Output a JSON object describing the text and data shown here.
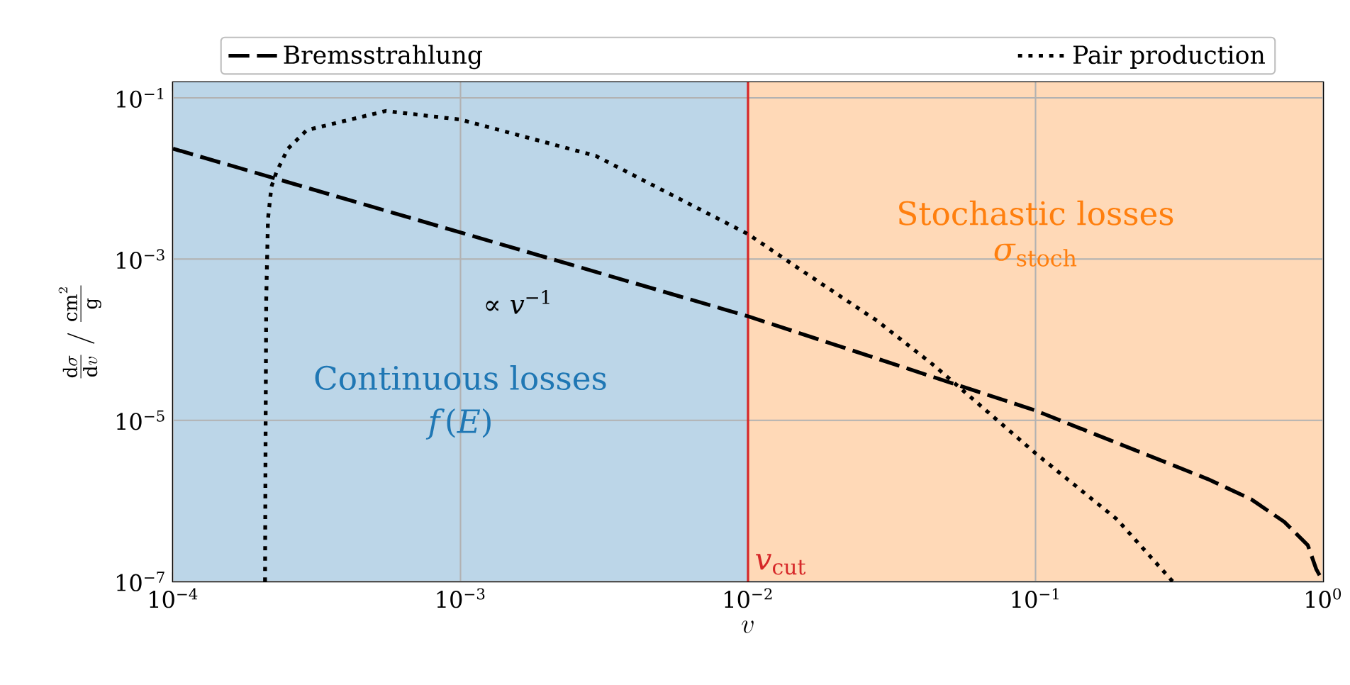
{
  "chart_data": {
    "type": "line",
    "xlabel": "v",
    "ylabel": "\\frac{\\mathrm{d}\\sigma}{\\mathrm{d}v}\\;/\\;\\frac{\\mathrm{cm}^2}{\\mathrm{g}}",
    "log": "xy",
    "grid": true,
    "legend": "top",
    "xlim": [
      0.0001,
      1
    ],
    "ylim": [
      1e-07,
      0.156
    ],
    "xticks": [
      {
        "value": 0.0001,
        "label": "10$^{−4}$"
      },
      {
        "value": 0.001,
        "label": "10$^{−3}$"
      },
      {
        "value": 0.01,
        "label": "10$^{−2}$"
      },
      {
        "value": 0.1,
        "label": "10$^{−1}$"
      },
      {
        "value": 1,
        "label": "10$^{0}$"
      }
    ],
    "yticks": [
      {
        "value": 1e-07,
        "label": "10$^{−7}$"
      },
      {
        "value": 1e-05,
        "label": "10$^{−5}$"
      },
      {
        "value": 0.001,
        "label": "10$^{−3}$"
      },
      {
        "value": 0.1,
        "label": "10$^{−1}$"
      }
    ],
    "series": [
      {
        "name": "Bremsstrahlung",
        "color": "#000000",
        "line_style": "dashed",
        "x": [
          0.0001,
          0.01,
          0.1,
          0.398,
          0.562,
          0.733,
          0.885,
          0.948,
          1.0
        ],
        "values": [
          0.0234,
          0.000195,
          1.32e-05,
          1.86e-06,
          1.05e-06,
          5.5e-07,
          2.82e-07,
          1.41e-07,
          1e-07
        ]
      },
      {
        "name": "Pair production",
        "color": "#000000",
        "line_style": "dotted",
        "x": [
          0.000209,
          0.00021,
          0.000211,
          0.000214,
          0.00022,
          0.000229,
          0.000251,
          0.000292,
          0.00055,
          0.001,
          0.00295,
          0.01,
          0.0148,
          0.0282,
          0.0447,
          0.1,
          0.192,
          0.3
        ],
        "values": [
          1e-07,
          1e-05,
          0.000316,
          0.00316,
          0.0079,
          0.012,
          0.0234,
          0.0398,
          0.0687,
          0.0537,
          0.0191,
          0.00204,
          0.00079,
          0.00017,
          4.68e-05,
          3.89e-06,
          5.9e-07,
          1e-07
        ]
      }
    ],
    "bands": [
      {
        "axis": "x",
        "from": 0.0001,
        "to": 0.01,
        "label": "Continuous losses",
        "color": "#bcd6e8"
      },
      {
        "axis": "x",
        "from": 0.01,
        "to": 1,
        "label": "Stochastic losses",
        "color": "#ffd9b7"
      }
    ],
    "ref_lines": [
      {
        "axis": "x",
        "value": 0.01,
        "label": "*v*$_{cut}$",
        "color": "#d62728"
      }
    ],
    "annotations": [
      "∝ *v*$^{−1}$",
      "*f*(*E*)",
      "*σ*$_{stoch}$"
    ]
  }
}
